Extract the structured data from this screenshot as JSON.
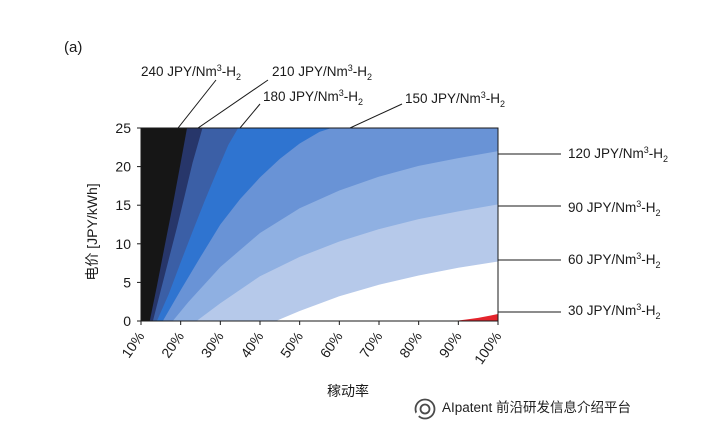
{
  "chart_data": {
    "type": "area",
    "panel_label": "(a)",
    "xlabel": "稼动率",
    "ylabel": "电价 [JPY/kWh]",
    "x_ticks": [
      "10%",
      "20%",
      "30%",
      "40%",
      "50%",
      "60%",
      "70%",
      "80%",
      "90%",
      "100%"
    ],
    "y_ticks": [
      "0",
      "5",
      "10",
      "15",
      "20",
      "25"
    ],
    "xlim": [
      10,
      100
    ],
    "ylim": [
      0,
      25
    ],
    "grid": false,
    "color_scale": [
      "#e4242c",
      "#ffffff",
      "#b6c9ea",
      "#8fb0e2",
      "#6993d6",
      "#2f74d0",
      "#3b5fa6",
      "#27366a",
      "#3a3a3a",
      "#161616"
    ],
    "contour_unit": "JPY/Nm³-H₂",
    "contours": [
      {
        "label": "30 JPY/Nm³-H₂",
        "level": 30,
        "x": [
          89,
          92,
          95,
          98,
          100
        ],
        "y": [
          0,
          0.2,
          0.4,
          0.7,
          0.9
        ]
      },
      {
        "label": "60 JPY/Nm³-H₂",
        "level": 60,
        "x": [
          44,
          50,
          60,
          70,
          80,
          90,
          100
        ],
        "y": [
          0,
          1.3,
          3.2,
          4.7,
          5.9,
          6.9,
          7.7
        ]
      },
      {
        "label": "90 JPY/Nm³-H₂",
        "level": 90,
        "x": [
          24,
          30,
          40,
          50,
          60,
          70,
          80,
          90,
          100
        ],
        "y": [
          0,
          2.3,
          5.8,
          8.3,
          10.3,
          11.9,
          13.2,
          14.2,
          15.1
        ]
      },
      {
        "label": "120 JPY/Nm³-H₂",
        "level": 120,
        "x": [
          18,
          22,
          30,
          40,
          50,
          60,
          70,
          80,
          90,
          100
        ],
        "y": [
          0,
          2.5,
          7.0,
          11.4,
          14.6,
          16.9,
          18.7,
          20.1,
          21.1,
          22.0
        ]
      },
      {
        "label": "150 JPY/Nm³-H₂",
        "level": 150,
        "x": [
          15.5,
          20,
          25,
          30,
          35,
          40,
          45,
          50,
          55,
          58
        ],
        "y": [
          0,
          4.0,
          8.3,
          12.5,
          15.8,
          18.6,
          21.0,
          23.0,
          24.5,
          25
        ]
      },
      {
        "label": "180 JPY/Nm³-H₂",
        "level": 180,
        "x": [
          14,
          17,
          20,
          23,
          26,
          29,
          32,
          34.5
        ],
        "y": [
          0,
          3.5,
          7.6,
          11.6,
          15.5,
          19.2,
          22.8,
          25
        ]
      },
      {
        "label": "210 JPY/Nm³-H₂",
        "level": 210,
        "x": [
          13,
          15,
          17,
          19,
          21,
          23,
          25.5
        ],
        "y": [
          0,
          4.0,
          8.0,
          12.0,
          16.2,
          20.5,
          25
        ]
      },
      {
        "label": "240 JPY/Nm³-H₂",
        "level": 240,
        "x": [
          12.2,
          14,
          16,
          18,
          20,
          21.6
        ],
        "y": [
          0,
          4.5,
          9.8,
          15.0,
          20.5,
          25
        ]
      }
    ]
  },
  "watermark": {
    "icon": "wechat-official-account-logo",
    "text": "AIpatent 前沿研发信息介绍平台"
  }
}
